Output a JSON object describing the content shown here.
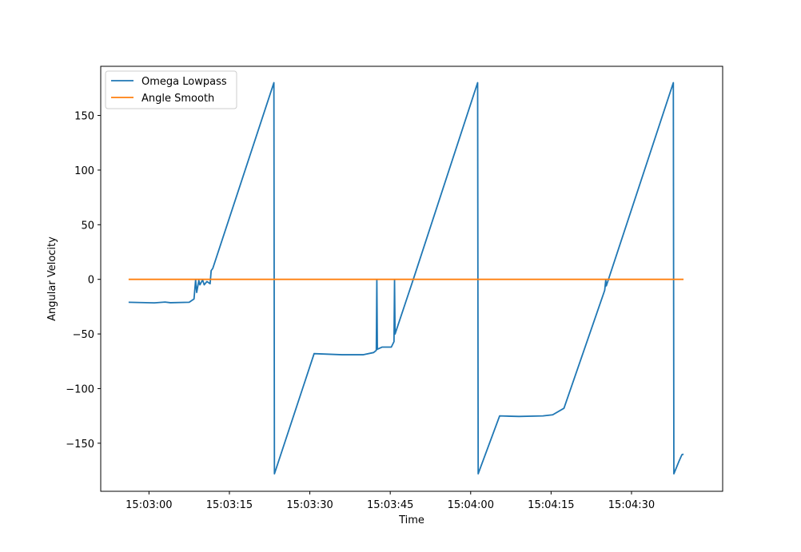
{
  "chart_data": {
    "type": "line",
    "title": "",
    "xlabel": "Time",
    "ylabel": "Angular Velocity",
    "xlim": [
      "15:02:51",
      "15:04:47"
    ],
    "ylim": [
      -194,
      195
    ],
    "x_ticks": [
      "15:03:00",
      "15:03:15",
      "15:03:30",
      "15:03:45",
      "15:04:00",
      "15:04:15",
      "15:04:30"
    ],
    "y_ticks": [
      -150,
      -100,
      -50,
      0,
      50,
      100,
      150
    ],
    "grid": false,
    "legend_position": "top-left",
    "series": [
      {
        "name": "Omega Lowpass",
        "color": "#1f77b4",
        "points": [
          [
            "15:02:56.2",
            -21
          ],
          [
            "15:03:01",
            -21.5
          ],
          [
            "15:03:03",
            -20.8
          ],
          [
            "15:03:04",
            -21.4
          ],
          [
            "15:03:07.5",
            -21
          ],
          [
            "15:03:08.4",
            -18
          ],
          [
            "15:03:08.7",
            -0.5
          ],
          [
            "15:03:08.9",
            -12
          ],
          [
            "15:03:09.3",
            -1
          ],
          [
            "15:03:09.5",
            -5
          ],
          [
            "15:03:10",
            -0.5
          ],
          [
            "15:03:10.3",
            -5
          ],
          [
            "15:03:10.8",
            -2
          ],
          [
            "15:03:11.4",
            -4
          ],
          [
            "15:03:11.6",
            8
          ],
          [
            "15:03:11.9",
            10
          ],
          [
            "15:03:23.3",
            180
          ],
          [
            "15:03:23.4",
            -178
          ],
          [
            "15:03:30.8",
            -68
          ],
          [
            "15:03:36",
            -69
          ],
          [
            "15:03:40",
            -69
          ],
          [
            "15:03:41.9",
            -67
          ],
          [
            "15:03:42.4",
            -65
          ],
          [
            "15:03:42.5",
            -0.5
          ],
          [
            "15:03:42.6",
            -64
          ],
          [
            "15:03:43.5",
            -62
          ],
          [
            "15:03:45.2",
            -62
          ],
          [
            "15:03:45.7",
            -57
          ],
          [
            "15:03:45.8",
            -0.5
          ],
          [
            "15:03:45.9",
            -50
          ],
          [
            "15:03:49.3",
            0
          ],
          [
            "15:04:01.3",
            180
          ],
          [
            "15:04:01.4",
            -178
          ],
          [
            "15:04:05.4",
            -125
          ],
          [
            "15:04:09",
            -125.5
          ],
          [
            "15:04:13.5",
            -125
          ],
          [
            "15:04:15.3",
            -124
          ],
          [
            "15:04:17.4",
            -118
          ],
          [
            "15:04:25",
            -10
          ],
          [
            "15:04:25.2",
            -0.5
          ],
          [
            "15:04:25.3",
            -6
          ],
          [
            "15:04:37.8",
            180
          ],
          [
            "15:04:37.9",
            -178
          ],
          [
            "15:04:38.9",
            -166
          ],
          [
            "15:04:39.4",
            -160.5
          ],
          [
            "15:04:39.7",
            -160
          ]
        ]
      },
      {
        "name": "Angle Smooth",
        "color": "#ff7f0e",
        "points": [
          [
            "15:02:56.2",
            0
          ],
          [
            "15:04:39.7",
            0
          ]
        ]
      }
    ]
  }
}
